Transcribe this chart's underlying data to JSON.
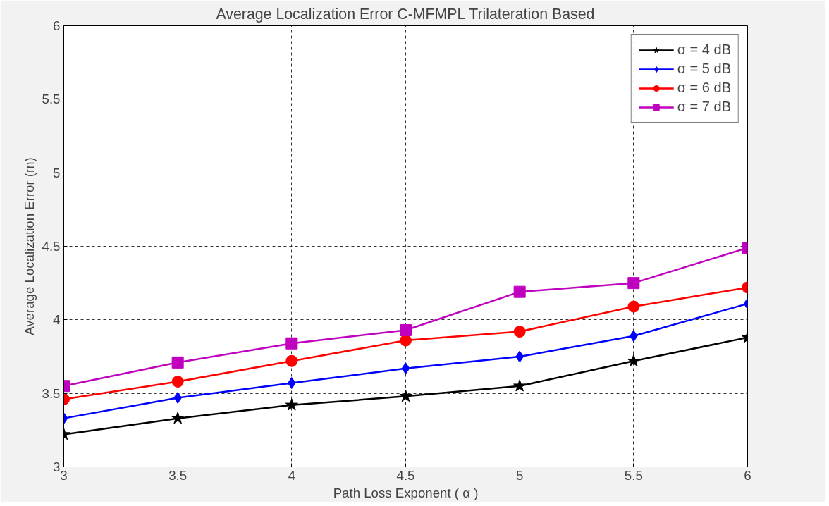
{
  "chart_data": {
    "type": "line",
    "title": "Average Localization Error C-MFMPL Trilateration Based",
    "xlabel": "Path Loss Exponent ( α )",
    "ylabel": "Average Localization Error (m)",
    "x": [
      3,
      3.5,
      4,
      4.5,
      5,
      5.5,
      6
    ],
    "series": [
      {
        "name": "σ = 4 dB",
        "color": "#000000",
        "marker": "star",
        "values": [
          3.22,
          3.33,
          3.42,
          3.48,
          3.55,
          3.72,
          3.88
        ]
      },
      {
        "name": "σ = 5 dB",
        "color": "#0000ff",
        "marker": "diamond",
        "values": [
          3.33,
          3.47,
          3.57,
          3.67,
          3.75,
          3.89,
          4.11
        ]
      },
      {
        "name": "σ = 6 dB",
        "color": "#ff0000",
        "marker": "circle",
        "values": [
          3.46,
          3.58,
          3.72,
          3.86,
          3.92,
          4.09,
          4.22
        ]
      },
      {
        "name": "σ = 7 dB",
        "color": "#bf00bf",
        "marker": "square",
        "values": [
          3.55,
          3.71,
          3.84,
          3.93,
          4.19,
          4.25,
          4.49
        ]
      }
    ],
    "xlim": [
      3,
      6
    ],
    "ylim": [
      3,
      6
    ],
    "xticks": [
      3,
      3.5,
      4,
      4.5,
      5,
      5.5,
      6
    ],
    "yticks": [
      3,
      3.5,
      4,
      4.5,
      5,
      5.5,
      6
    ],
    "grid": true,
    "legend": "top right",
    "line_style": "solid"
  }
}
